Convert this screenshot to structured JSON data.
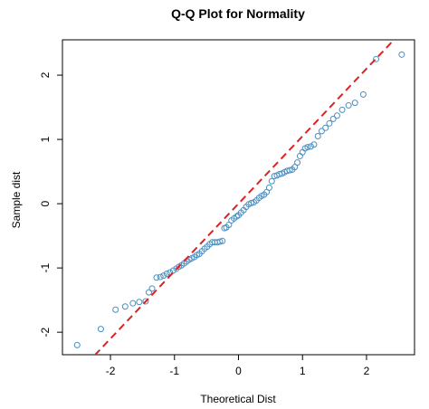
{
  "chart_data": {
    "type": "scatter",
    "title": "Q-Q Plot for Normality",
    "xlabel": "Theoretical Dist",
    "ylabel": "Sample dist",
    "xlim": [
      -2.75,
      2.75
    ],
    "ylim": [
      -2.35,
      2.55
    ],
    "xticks": [
      -2,
      -1,
      0,
      1,
      2
    ],
    "yticks": [
      -2,
      -1,
      0,
      1,
      2
    ],
    "grid": false,
    "point_color": "#4a8fc0",
    "reference_line": {
      "color": "#dd2222",
      "style": "dashed",
      "slope": 1.05,
      "intercept": 0.0
    },
    "points": [
      [
        -2.52,
        -2.2
      ],
      [
        -2.15,
        -1.95
      ],
      [
        -1.92,
        -1.65
      ],
      [
        -1.77,
        -1.6
      ],
      [
        -1.65,
        -1.55
      ],
      [
        -1.55,
        -1.53
      ],
      [
        -1.45,
        -1.52
      ],
      [
        -1.4,
        -1.38
      ],
      [
        -1.35,
        -1.32
      ],
      [
        -1.28,
        -1.15
      ],
      [
        -1.22,
        -1.14
      ],
      [
        -1.17,
        -1.12
      ],
      [
        -1.12,
        -1.09
      ],
      [
        -1.07,
        -1.07
      ],
      [
        -1.02,
        -1.04
      ],
      [
        -0.97,
        -1.01
      ],
      [
        -0.93,
        -0.98
      ],
      [
        -0.89,
        -0.96
      ],
      [
        -0.85,
        -0.93
      ],
      [
        -0.81,
        -0.9
      ],
      [
        -0.77,
        -0.87
      ],
      [
        -0.73,
        -0.85
      ],
      [
        -0.69,
        -0.83
      ],
      [
        -0.65,
        -0.8
      ],
      [
        -0.61,
        -0.78
      ],
      [
        -0.57,
        -0.74
      ],
      [
        -0.53,
        -0.7
      ],
      [
        -0.49,
        -0.67
      ],
      [
        -0.45,
        -0.63
      ],
      [
        -0.41,
        -0.6
      ],
      [
        -0.37,
        -0.6
      ],
      [
        -0.33,
        -0.6
      ],
      [
        -0.29,
        -0.59
      ],
      [
        -0.25,
        -0.58
      ],
      [
        -0.22,
        -0.38
      ],
      [
        -0.19,
        -0.37
      ],
      [
        -0.15,
        -0.33
      ],
      [
        -0.11,
        -0.26
      ],
      [
        -0.07,
        -0.23
      ],
      [
        -0.03,
        -0.2
      ],
      [
        0.0,
        -0.18
      ],
      [
        0.04,
        -0.14
      ],
      [
        0.08,
        -0.1
      ],
      [
        0.12,
        -0.05
      ],
      [
        0.16,
        -0.01
      ],
      [
        0.2,
        0.01
      ],
      [
        0.24,
        0.02
      ],
      [
        0.28,
        0.05
      ],
      [
        0.32,
        0.09
      ],
      [
        0.36,
        0.12
      ],
      [
        0.4,
        0.14
      ],
      [
        0.44,
        0.18
      ],
      [
        0.48,
        0.25
      ],
      [
        0.52,
        0.35
      ],
      [
        0.56,
        0.43
      ],
      [
        0.6,
        0.44
      ],
      [
        0.64,
        0.46
      ],
      [
        0.68,
        0.47
      ],
      [
        0.72,
        0.49
      ],
      [
        0.76,
        0.51
      ],
      [
        0.8,
        0.52
      ],
      [
        0.84,
        0.53
      ],
      [
        0.88,
        0.57
      ],
      [
        0.92,
        0.64
      ],
      [
        0.96,
        0.74
      ],
      [
        1.0,
        0.8
      ],
      [
        1.04,
        0.86
      ],
      [
        1.08,
        0.88
      ],
      [
        1.13,
        0.89
      ],
      [
        1.18,
        0.92
      ],
      [
        1.24,
        1.05
      ],
      [
        1.3,
        1.13
      ],
      [
        1.36,
        1.18
      ],
      [
        1.42,
        1.25
      ],
      [
        1.48,
        1.32
      ],
      [
        1.54,
        1.37
      ],
      [
        1.62,
        1.46
      ],
      [
        1.72,
        1.53
      ],
      [
        1.82,
        1.57
      ],
      [
        1.95,
        1.7
      ],
      [
        2.15,
        2.25
      ],
      [
        2.55,
        2.32
      ]
    ]
  }
}
